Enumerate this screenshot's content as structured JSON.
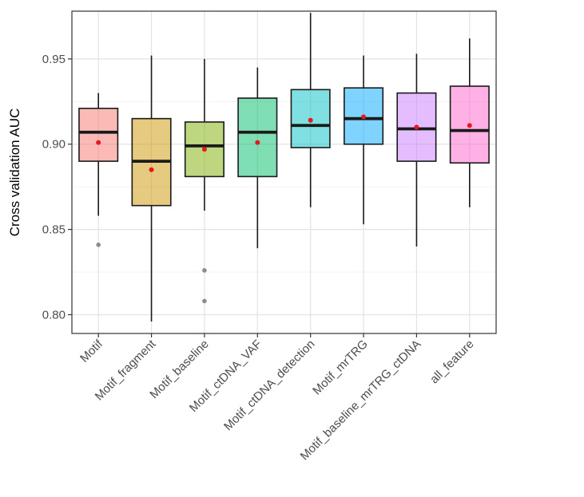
{
  "chart_data": {
    "type": "box",
    "xlabel": "",
    "ylabel": "Cross validation AUC",
    "ylim": [
      0.789,
      0.978
    ],
    "yticks": [
      0.8,
      0.85,
      0.9,
      0.95
    ],
    "ytick_labels": [
      "0.80",
      "0.85",
      "0.90",
      "0.95"
    ],
    "grid": true,
    "categories": [
      "Motif",
      "Motif_fragment",
      "Motif_baseline",
      "Motif_ctDNA_VAF",
      "Motif_ctDNA_detection",
      "Motif_mrTRG",
      "Motif_baseline_mrTRG_ctDNA",
      "all_feature"
    ],
    "boxes": [
      {
        "category": "Motif",
        "whisker_low": 0.858,
        "q1": 0.89,
        "median": 0.907,
        "q3": 0.921,
        "whisker_high": 0.93,
        "mean": 0.901,
        "outliers": [
          0.841
        ],
        "color": "#F8766D"
      },
      {
        "category": "Motif_fragment",
        "whisker_low": 0.796,
        "q1": 0.864,
        "median": 0.89,
        "q3": 0.915,
        "whisker_high": 0.952,
        "mean": 0.885,
        "outliers": [],
        "color": "#CD9600"
      },
      {
        "category": "Motif_baseline",
        "whisker_low": 0.861,
        "q1": 0.881,
        "median": 0.899,
        "q3": 0.913,
        "whisker_high": 0.95,
        "mean": 0.897,
        "outliers": [
          0.826,
          0.808
        ],
        "color": "#7CAE00"
      },
      {
        "category": "Motif_ctDNA_VAF",
        "whisker_low": 0.839,
        "q1": 0.881,
        "median": 0.907,
        "q3": 0.927,
        "whisker_high": 0.945,
        "mean": 0.901,
        "outliers": [],
        "color": "#00BE67"
      },
      {
        "category": "Motif_ctDNA_detection",
        "whisker_low": 0.863,
        "q1": 0.898,
        "median": 0.911,
        "q3": 0.932,
        "whisker_high": 0.977,
        "mean": 0.914,
        "outliers": [],
        "color": "#00BFC4"
      },
      {
        "category": "Motif_mrTRG",
        "whisker_low": 0.853,
        "q1": 0.9,
        "median": 0.915,
        "q3": 0.933,
        "whisker_high": 0.952,
        "mean": 0.916,
        "outliers": [],
        "color": "#00A9FF"
      },
      {
        "category": "Motif_baseline_mrTRG_ctDNA",
        "whisker_low": 0.84,
        "q1": 0.89,
        "median": 0.909,
        "q3": 0.93,
        "whisker_high": 0.953,
        "mean": 0.91,
        "outliers": [],
        "color": "#C77CFF"
      },
      {
        "category": "all_feature",
        "whisker_low": 0.863,
        "q1": 0.889,
        "median": 0.908,
        "q3": 0.934,
        "whisker_high": 0.962,
        "mean": 0.911,
        "outliers": [],
        "color": "#FF61CC"
      }
    ],
    "mean_marker_color": "#E41A1C",
    "outlier_color": "#8C8C8C"
  }
}
